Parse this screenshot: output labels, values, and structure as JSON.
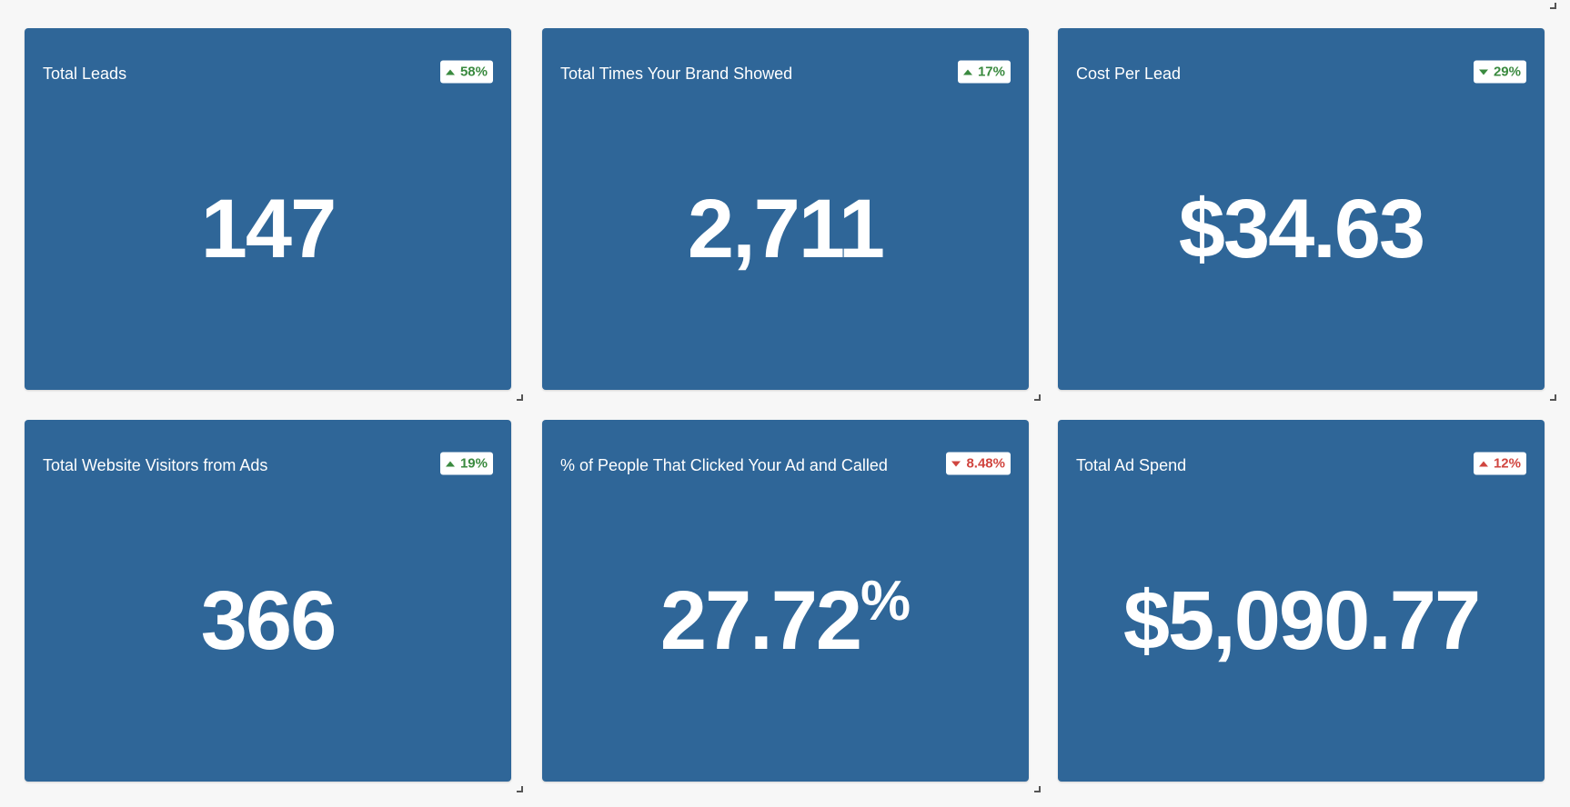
{
  "colors": {
    "card_background": "#2f6698",
    "positive": "#3a8a3f",
    "negative": "#d0453f",
    "page_background": "#f7f7f7",
    "text": "#ffffff"
  },
  "cards": [
    {
      "title": "Total Leads",
      "value": "147",
      "suffix": "",
      "change": "58%",
      "direction": "up",
      "sentiment": "positive",
      "trend_icon": "caret-up-icon"
    },
    {
      "title": "Total Times Your Brand Showed",
      "value": "2,711",
      "suffix": "",
      "change": "17%",
      "direction": "up",
      "sentiment": "positive",
      "trend_icon": "caret-up-icon"
    },
    {
      "title": "Cost Per Lead",
      "value": "$34.63",
      "suffix": "",
      "change": "29%",
      "direction": "down",
      "sentiment": "positive",
      "trend_icon": "caret-down-icon"
    },
    {
      "title": "Total Website Visitors from Ads",
      "value": "366",
      "suffix": "",
      "change": "19%",
      "direction": "up",
      "sentiment": "positive",
      "trend_icon": "caret-up-icon"
    },
    {
      "title": "% of People That Clicked Your Ad and Called",
      "value": "27.72",
      "suffix": "%",
      "change": "8.48%",
      "direction": "down",
      "sentiment": "negative",
      "trend_icon": "caret-down-icon"
    },
    {
      "title": "Total Ad Spend",
      "value": "$5,090.77",
      "suffix": "",
      "change": "12%",
      "direction": "up",
      "sentiment": "negative",
      "trend_icon": "caret-up-icon"
    }
  ]
}
